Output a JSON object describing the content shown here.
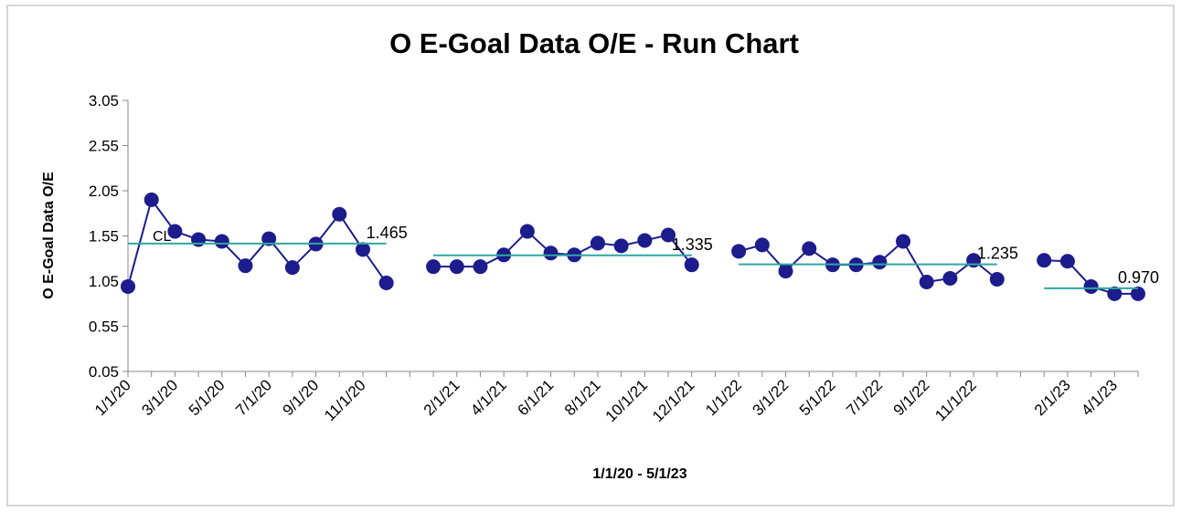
{
  "chart_data": {
    "type": "line",
    "title": "O E-Goal  Data O/E - Run Chart",
    "x_label": "1/1/20 - 5/1/23",
    "y_label": "O E-Goal  Data O/E",
    "annotation": "CL",
    "categories": [
      "1/1/20",
      null,
      "3/1/20",
      null,
      "5/1/20",
      null,
      "7/1/20",
      null,
      "9/1/20",
      null,
      "11/1/20",
      null,
      null,
      null,
      "2/1/21",
      null,
      "4/1/21",
      null,
      "6/1/21",
      null,
      "8/1/21",
      null,
      "10/1/21",
      null,
      "12/1/21",
      null,
      "1/1/22",
      null,
      "3/1/22",
      null,
      "5/1/22",
      null,
      "7/1/22",
      null,
      "9/1/22",
      null,
      "11/1/22",
      null,
      null,
      null,
      "2/1/23",
      null,
      "4/1/23",
      null
    ],
    "series": [
      {
        "name": "O/E",
        "color": "#1c1c8c",
        "values": [
          0.99,
          1.95,
          1.6,
          1.51,
          1.49,
          1.22,
          1.52,
          1.2,
          1.46,
          1.79,
          1.4,
          1.03,
          null,
          1.21,
          1.21,
          1.21,
          1.34,
          1.6,
          1.36,
          1.34,
          1.47,
          1.44,
          1.5,
          1.56,
          1.23,
          null,
          1.38,
          1.45,
          1.16,
          1.41,
          1.23,
          1.23,
          1.26,
          1.49,
          1.04,
          1.08,
          1.28,
          1.07,
          null,
          1.28,
          1.27,
          0.99,
          0.91,
          0.91
        ]
      },
      {
        "name": "CL",
        "color": "#2fa7a2",
        "values": [
          1.465,
          1.465,
          1.465,
          1.465,
          1.465,
          1.465,
          1.465,
          1.465,
          1.465,
          1.465,
          1.465,
          1.465,
          null,
          1.335,
          1.335,
          1.335,
          1.335,
          1.335,
          1.335,
          1.335,
          1.335,
          1.335,
          1.335,
          1.335,
          1.335,
          null,
          1.235,
          1.235,
          1.235,
          1.235,
          1.235,
          1.235,
          1.235,
          1.235,
          1.235,
          1.235,
          1.235,
          1.235,
          null,
          0.97,
          0.97,
          0.97,
          0.97,
          0.97
        ],
        "value_labels": [
          null,
          null,
          null,
          null,
          null,
          null,
          null,
          null,
          null,
          null,
          null,
          "1.465",
          null,
          null,
          null,
          null,
          null,
          null,
          null,
          null,
          null,
          null,
          null,
          null,
          "1.335",
          null,
          null,
          null,
          null,
          null,
          null,
          null,
          null,
          null,
          null,
          null,
          null,
          "1.235",
          null,
          null,
          null,
          null,
          null,
          "0.970"
        ]
      }
    ],
    "ylim": [
      0.05,
      3.05
    ],
    "yticks": [
      0.05,
      0.55,
      1.05,
      1.55,
      2.05,
      2.55,
      3.05
    ],
    "grid": false,
    "legend": false
  }
}
